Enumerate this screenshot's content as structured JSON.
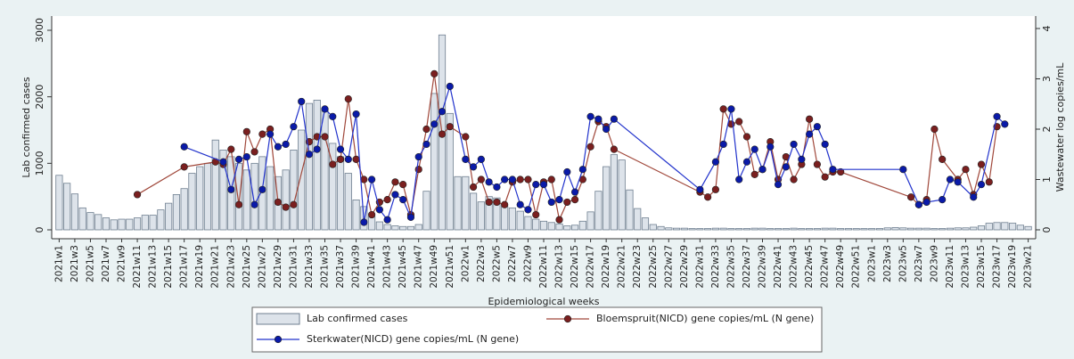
{
  "chart_data": {
    "type": "combo",
    "ylabel": "Lab confirmed cases",
    "y2label": "Wastewater log copies/mL",
    "xlabel": "Epidemiological weeks",
    "ylim": [
      0,
      3000
    ],
    "yticks": [
      0,
      1000,
      2000,
      3000
    ],
    "y2lim": [
      0,
      4
    ],
    "y2ticks": [
      0,
      1,
      2,
      3,
      4
    ],
    "categories": [
      "2021w1",
      null,
      "2021w3",
      null,
      "2021w5",
      null,
      "2021w7",
      null,
      "2021w9",
      null,
      "2021w11",
      null,
      "2021w13",
      null,
      "2021w15",
      null,
      "2021w17",
      null,
      "2021w19",
      null,
      "2021w21",
      null,
      "2021w23",
      null,
      "2021w25",
      null,
      "2021w27",
      null,
      "2021w29",
      null,
      "2021w31",
      null,
      "2021w33",
      null,
      "2021w35",
      null,
      "2021w37",
      null,
      "2021w39",
      null,
      "2021w41",
      null,
      "2021w43",
      null,
      "2021w45",
      null,
      "2021w47",
      null,
      "2021w49",
      null,
      "2021w51",
      null,
      "2022w1",
      null,
      "2022w3",
      null,
      "2022w5",
      null,
      "2022w7",
      null,
      "2022w9",
      null,
      "2022w11",
      null,
      "2022w13",
      null,
      "2022w15",
      null,
      "2022w17",
      null,
      "2022w19",
      null,
      "2022w21",
      null,
      "2022w23",
      null,
      "2022w25",
      null,
      "2022w27",
      null,
      "2022w29",
      null,
      "2022w31",
      null,
      "2022w33",
      null,
      "2022w35",
      null,
      "2022w37",
      null,
      "2022w39",
      null,
      "2022w41",
      null,
      "2022w43",
      null,
      "2022w45",
      null,
      "2022w47",
      null,
      "2022w49",
      null,
      "2022w51",
      null,
      "2023w1",
      null,
      "2023w3",
      null,
      "2023w5",
      null,
      "2023w7",
      null,
      "2023w9",
      null,
      "2023w11",
      null,
      "2023w13",
      null,
      "2023w15",
      null,
      "2023w17",
      null,
      "2023w19",
      null,
      "2023w21"
    ],
    "series": [
      {
        "name": "Lab confirmed cases",
        "type": "bar",
        "color": "#dde3ea",
        "edge_color": "#6f7f90",
        "values": [
          820,
          700,
          540,
          330,
          260,
          230,
          180,
          150,
          160,
          160,
          180,
          220,
          220,
          300,
          400,
          530,
          620,
          850,
          950,
          1000,
          1350,
          1200,
          1100,
          1000,
          900,
          1000,
          1100,
          950,
          800,
          900,
          1200,
          1500,
          1900,
          1950,
          1800,
          1300,
          1100,
          850,
          450,
          350,
          200,
          120,
          80,
          60,
          50,
          50,
          80,
          580,
          2050,
          2930,
          1750,
          800,
          800,
          550,
          420,
          500,
          480,
          350,
          330,
          280,
          200,
          160,
          130,
          110,
          90,
          60,
          70,
          130,
          270,
          580,
          950,
          1130,
          1050,
          600,
          320,
          180,
          80,
          50,
          30,
          25,
          25,
          20,
          20,
          20,
          25,
          25,
          20,
          20,
          20,
          25,
          25,
          20,
          20,
          20,
          25,
          20,
          20,
          20,
          25,
          25,
          20,
          20,
          20,
          20,
          20,
          20,
          30,
          35,
          30,
          25,
          25,
          25,
          20,
          20,
          25,
          30,
          30,
          40,
          60,
          100,
          110,
          110,
          100,
          70,
          50
        ]
      },
      {
        "name": "Bloemspruit(NICD) gene copies/mL (N gene)",
        "type": "line",
        "axis": "y2",
        "color": "#a0473a",
        "marker_color": "#7a1f1f",
        "values": [
          null,
          null,
          null,
          null,
          null,
          null,
          null,
          null,
          null,
          null,
          0.7,
          null,
          null,
          null,
          null,
          null,
          1.25,
          null,
          null,
          null,
          1.35,
          1.3,
          1.6,
          0.5,
          1.95,
          1.55,
          1.9,
          2.0,
          0.55,
          0.45,
          0.5,
          null,
          1.75,
          1.85,
          1.85,
          1.3,
          1.4,
          2.6,
          1.4,
          1.0,
          0.3,
          0.55,
          0.6,
          0.95,
          0.9,
          0.3,
          1.2,
          2.0,
          3.1,
          1.9,
          2.05,
          null,
          1.85,
          0.85,
          1.0,
          0.55,
          0.55,
          0.5,
          0.95,
          1.0,
          1.0,
          0.3,
          0.95,
          1.0,
          0.2,
          0.55,
          0.6,
          1.0,
          1.65,
          2.15,
          2.05,
          1.6,
          null,
          null,
          null,
          null,
          null,
          null,
          null,
          null,
          null,
          null,
          0.75,
          0.65,
          0.8,
          2.4,
          2.1,
          2.15,
          1.85,
          1.1,
          1.2,
          1.75,
          1.0,
          1.45,
          1.0,
          1.3,
          2.2,
          1.3,
          1.05,
          1.15,
          1.15,
          null,
          null,
          null,
          null,
          null,
          null,
          null,
          null,
          0.65,
          0.5,
          0.6,
          2.0,
          1.4,
          null,
          1.0,
          1.2,
          0.7,
          1.3,
          0.95,
          2.05,
          null,
          null,
          null,
          null
        ]
      },
      {
        "name": "Sterkwater(NICD) gene copies/mL (N gene)",
        "type": "line",
        "axis": "y2",
        "color": "#2233cc",
        "marker_color": "#0a1aa8",
        "values": [
          null,
          null,
          null,
          null,
          null,
          null,
          null,
          null,
          null,
          null,
          null,
          null,
          null,
          null,
          null,
          null,
          1.65,
          null,
          null,
          null,
          null,
          1.35,
          0.8,
          1.4,
          1.45,
          0.5,
          0.8,
          1.9,
          1.65,
          1.7,
          2.05,
          2.55,
          1.5,
          1.6,
          2.4,
          2.25,
          1.6,
          1.4,
          2.3,
          0.15,
          1.0,
          0.4,
          0.2,
          0.7,
          0.6,
          0.25,
          1.45,
          1.7,
          2.1,
          2.35,
          2.85,
          null,
          1.4,
          1.25,
          1.4,
          0.95,
          0.85,
          1.0,
          1.0,
          0.5,
          0.4,
          0.9,
          0.9,
          0.55,
          0.6,
          1.15,
          0.75,
          1.2,
          2.25,
          2.2,
          2.0,
          2.2,
          null,
          null,
          null,
          null,
          null,
          null,
          null,
          null,
          null,
          null,
          0.8,
          null,
          1.35,
          1.7,
          2.4,
          1.0,
          1.35,
          1.6,
          1.2,
          1.65,
          0.9,
          1.25,
          1.7,
          1.4,
          1.9,
          2.05,
          1.7,
          1.2,
          null,
          null,
          null,
          null,
          null,
          null,
          null,
          null,
          1.2,
          null,
          0.5,
          0.55,
          null,
          0.6,
          1.0,
          0.95,
          null,
          0.65,
          0.9,
          null,
          2.25,
          2.1,
          null,
          null,
          null
        ]
      }
    ]
  }
}
